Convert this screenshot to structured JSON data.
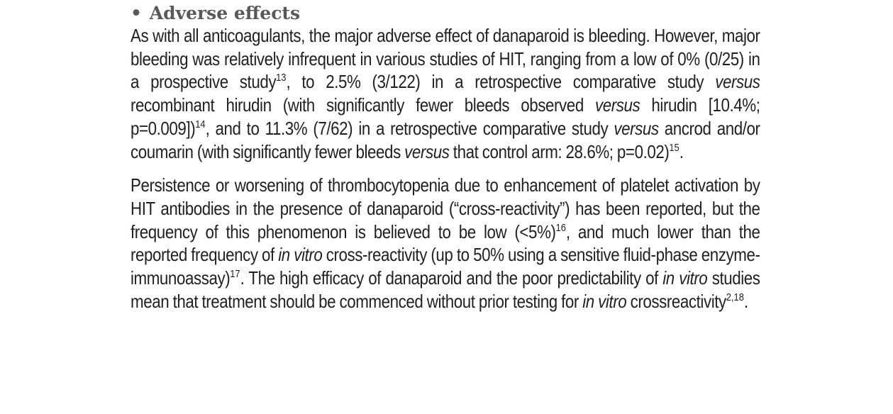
{
  "section": {
    "bullet": "•",
    "title": "Adverse effects"
  },
  "paragraph1": {
    "s1": "As with all anticoagulants, the major adverse effect of danaparoid is bleeding. However, major bleeding was relatively infrequent in various studies of HIT, ranging from a low of 0% (0/25) in a prospective study",
    "ref1": "13",
    "s2": ", to 2.5% (3/122) in a retrospective comparative study ",
    "versus1": "versus",
    "s3": " recombinant hirudin (with significantly fewer bleeds observed ",
    "versus2": "versus",
    "s4": " hirudin [10.4%; p=0.009])",
    "ref2": "14",
    "s5": ", and to 11.3% (7/62) in a retrospective comparative study ",
    "versus3": "versus",
    "s6": " ancrod and/or coumarin (with significantly fewer bleeds ",
    "versus4": "versus",
    "s7": " that control arm: 28.6%; p=0.02)",
    "ref3": "15",
    "s8": "."
  },
  "paragraph2": {
    "s1": "Persistence or worsening of thrombocytopenia due to enhancement of platelet activation by HIT antibodies in the presence of danaparoid (“cross-reactivity”) has been reported, but the frequency of this phenomenon is believed to be low (<5%)",
    "ref1": "16",
    "s2": ", and much lower than the reported frequency of ",
    "invitro1": "in vitro",
    "s3": " cross-reactivity (up to 50% using a sensitive fluid-phase enzyme-immunoassay)",
    "ref2": "17",
    "s4": ". The high efficacy of danaparoid and the poor predictability of ",
    "invitro2": "in vitro",
    "s5": " studies mean that treatment should be commenced without prior testing for ",
    "invitro3": "in vitro",
    "s6": " crossreactivity",
    "ref3": "2,18",
    "s7": "."
  }
}
